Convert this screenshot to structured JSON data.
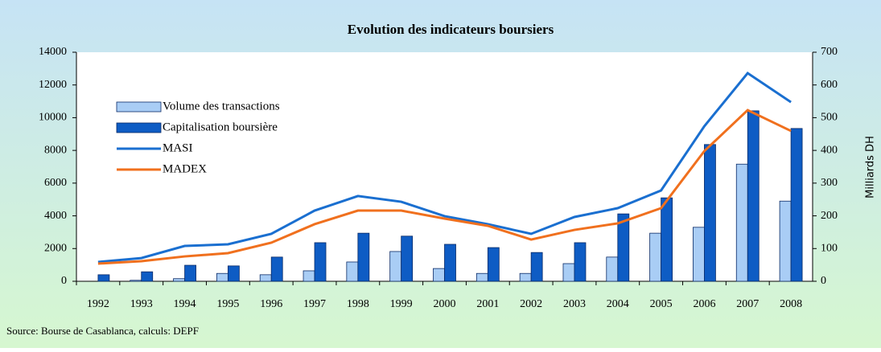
{
  "chart_data": {
    "type": "bar_line",
    "title": "Evolution des indicateurs boursiers",
    "source": "Source: Bourse de Casablanca, calculs: DEPF",
    "y2label": "Milliards DH",
    "categories": [
      "1992",
      "1993",
      "1994",
      "1995",
      "1996",
      "1997",
      "1998",
      "1999",
      "2000",
      "2001",
      "2002",
      "2003",
      "2004",
      "2005",
      "2006",
      "2007",
      "2008"
    ],
    "series": [
      {
        "name": "Volume des transactions",
        "kind": "bar",
        "axis": "y2",
        "color": "#a9cdf5",
        "values": [
          0,
          3,
          8,
          24,
          20,
          32,
          59,
          91,
          39,
          24,
          24,
          54,
          74,
          147,
          165,
          358,
          245
        ]
      },
      {
        "name": "Capitalisation boursière",
        "kind": "bar",
        "axis": "y2",
        "color": "#0e5cc4",
        "values": [
          20,
          29,
          49,
          47,
          74,
          118,
          147,
          138,
          113,
          103,
          88,
          118,
          206,
          255,
          418,
          521,
          467
        ]
      },
      {
        "name": "MASI",
        "kind": "line",
        "color": "#1a6fd0",
        "values": [
          1180,
          1420,
          2160,
          2260,
          2900,
          4320,
          5210,
          4860,
          3980,
          3490,
          2900,
          3930,
          4470,
          5550,
          9480,
          12720,
          10950
        ]
      },
      {
        "name": "MADEX",
        "kind": "line",
        "color": "#f0701e",
        "values": [
          1080,
          1230,
          1520,
          1720,
          2360,
          3490,
          4320,
          4320,
          3830,
          3390,
          2550,
          3140,
          3540,
          4470,
          7960,
          10460,
          9190
        ]
      }
    ],
    "ylim": [
      0,
      14000
    ],
    "yticks": [
      0,
      2000,
      4000,
      6000,
      8000,
      10000,
      12000,
      14000
    ],
    "y2lim": [
      0,
      700
    ],
    "y2ticks": [
      0,
      100,
      200,
      300,
      400,
      500,
      600,
      700
    ],
    "legend": "upper left"
  }
}
